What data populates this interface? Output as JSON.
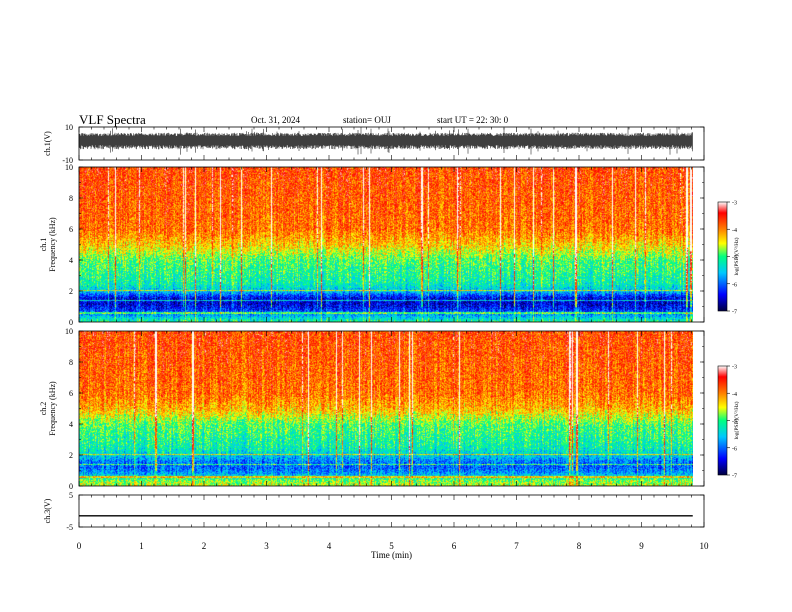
{
  "header": {
    "title": "VLF Spectra",
    "date": "Oct. 31, 2024",
    "station": "station= OUJ",
    "start": "start  UT  =   22: 30: 0"
  },
  "chart_data": [
    {
      "type": "line",
      "panel": "waveform-ch1",
      "ylabel": "ch.1(V)",
      "ylim": [
        -10,
        10
      ],
      "yticks": [
        "10",
        "-10"
      ],
      "xlim": [
        0,
        10
      ],
      "data_extent_min": 9.82,
      "trace_center": 2.0,
      "trace_spread": 5.0
    },
    {
      "type": "heatmap",
      "panel": "spectrogram-ch1",
      "ylabel": "ch.1\nFrequency (kHz)",
      "ylim": [
        0,
        10
      ],
      "yticks": [
        "0",
        "2",
        "4",
        "6",
        "8",
        "10"
      ],
      "xlim": [
        0,
        10
      ],
      "data_extent_min": 9.82,
      "colorbar": {
        "label": "log(PSD)(V²/Hz)",
        "range": [
          -7,
          -3
        ],
        "ticks": [
          "-3",
          "-4",
          "-5",
          "-6",
          "-7"
        ]
      },
      "mean_log_psd_profile": [
        {
          "f": 0.0,
          "v": -5.0
        },
        {
          "f": 0.4,
          "v": -5.6
        },
        {
          "f": 0.8,
          "v": -6.2
        },
        {
          "f": 1.2,
          "v": -6.5
        },
        {
          "f": 1.6,
          "v": -6.4
        },
        {
          "f": 2.0,
          "v": -5.6
        },
        {
          "f": 2.5,
          "v": -5.2
        },
        {
          "f": 3.0,
          "v": -5.1
        },
        {
          "f": 4.0,
          "v": -4.9
        },
        {
          "f": 5.0,
          "v": -4.3
        },
        {
          "f": 6.0,
          "v": -3.9
        },
        {
          "f": 8.0,
          "v": -3.8
        },
        {
          "f": 10.0,
          "v": -3.7
        }
      ]
    },
    {
      "type": "heatmap",
      "panel": "spectrogram-ch2",
      "ylabel": "ch.2\nFrequency (kHz)",
      "ylim": [
        0,
        10
      ],
      "yticks": [
        "0",
        "2",
        "4",
        "6",
        "8",
        "10"
      ],
      "xlim": [
        0,
        10
      ],
      "data_extent_min": 9.82,
      "colorbar": {
        "label": "log(PSD)(V²/Hz)",
        "range": [
          -7,
          -3
        ],
        "ticks": [
          "-3",
          "-4",
          "-5",
          "-6",
          "-7"
        ]
      },
      "mean_log_psd_profile": [
        {
          "f": 0.0,
          "v": -4.6
        },
        {
          "f": 0.4,
          "v": -4.8
        },
        {
          "f": 0.8,
          "v": -5.7
        },
        {
          "f": 1.2,
          "v": -6.0
        },
        {
          "f": 1.6,
          "v": -5.9
        },
        {
          "f": 2.0,
          "v": -5.5
        },
        {
          "f": 2.5,
          "v": -5.2
        },
        {
          "f": 3.0,
          "v": -5.1
        },
        {
          "f": 4.0,
          "v": -4.9
        },
        {
          "f": 5.0,
          "v": -4.2
        },
        {
          "f": 6.0,
          "v": -3.9
        },
        {
          "f": 8.0,
          "v": -3.8
        },
        {
          "f": 10.0,
          "v": -3.7
        }
      ]
    },
    {
      "type": "line",
      "panel": "waveform-ch3",
      "ylabel": "ch.3(V)",
      "ylim": [
        -5,
        5
      ],
      "yticks": [
        "5",
        "-5"
      ],
      "xlim": [
        0,
        10
      ],
      "data_extent_min": 9.82,
      "constant_value": -1.5,
      "xlabel": "Time (min)",
      "xticks": [
        "0",
        "1",
        "2",
        "3",
        "4",
        "5",
        "6",
        "7",
        "8",
        "9",
        "10"
      ]
    }
  ],
  "colors": {
    "axis": "#000000",
    "trace": "#000000",
    "colormap": [
      "#000040",
      "#0000ff",
      "#00c8ff",
      "#00ff80",
      "#ffff00",
      "#ff8000",
      "#ff0000",
      "#ffffff"
    ]
  }
}
